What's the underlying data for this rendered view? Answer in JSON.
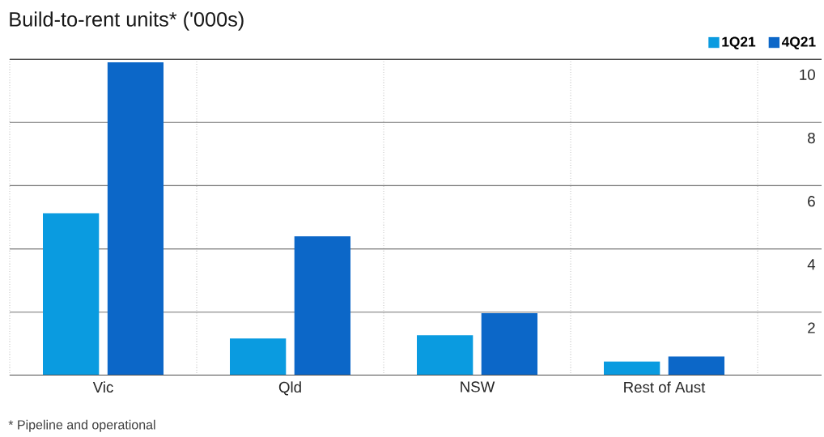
{
  "chart_data": {
    "type": "bar",
    "title": "Build-to-rent units* ('000s)",
    "categories": [
      "Vic",
      "Qld",
      "NSW",
      "Rest of Aust"
    ],
    "series": [
      {
        "name": "1Q21",
        "color": "#0a9be0",
        "values": [
          5.13,
          1.17,
          1.27,
          0.44
        ]
      },
      {
        "name": "4Q21",
        "color": "#0c67c8",
        "values": [
          9.9,
          4.4,
          1.97,
          0.6
        ]
      }
    ],
    "ylim": [
      0,
      10
    ],
    "yticks": [
      2,
      4,
      6,
      8,
      10
    ],
    "grid": true,
    "legend": "top right",
    "annotations": [
      "* Pipeline and operational"
    ]
  }
}
